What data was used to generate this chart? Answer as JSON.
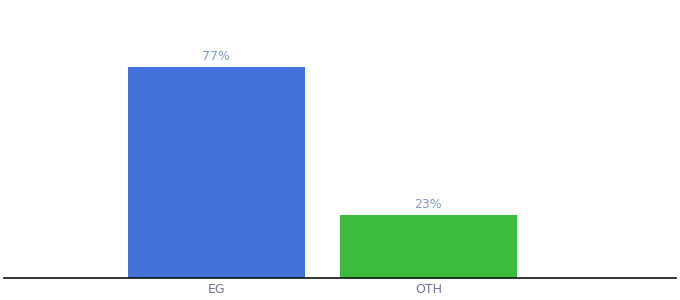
{
  "categories": [
    "EG",
    "OTH"
  ],
  "values": [
    77,
    23
  ],
  "bar_colors": [
    "#4472db",
    "#3dbb3d"
  ],
  "label_texts": [
    "77%",
    "23%"
  ],
  "ylim": [
    0,
    100
  ],
  "background_color": "#ffffff",
  "bar_width": 0.25,
  "label_fontsize": 9,
  "tick_fontsize": 9,
  "label_color_eg": "#7f9abf",
  "label_color_oth": "#7f9abf",
  "x_positions": [
    0.35,
    0.65
  ]
}
